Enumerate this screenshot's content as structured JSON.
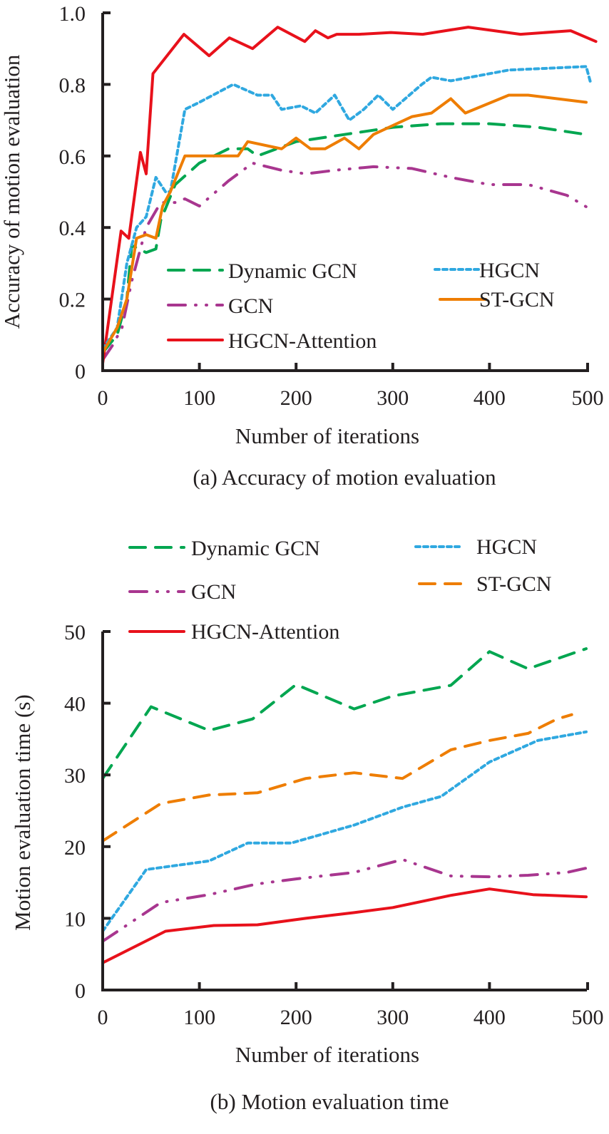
{
  "chart_data": [
    {
      "type": "line",
      "caption": "(a) Accuracy of motion evaluation",
      "xlabel": "Number of iterations",
      "ylabel": "Accuracy of motion evaluation",
      "xlim": [
        0,
        510
      ],
      "ylim": [
        0,
        1.0
      ],
      "xticks": [
        0,
        100,
        200,
        300,
        400,
        500
      ],
      "xtick_labels": [
        "0",
        "100",
        "200",
        "300",
        "400",
        "500"
      ],
      "yticks": [
        0,
        0.2,
        0.4,
        0.6,
        0.8,
        1.0
      ],
      "ytick_labels": [
        "0",
        "0.2",
        "0.4",
        "0.6",
        "0.8",
        "1.0"
      ],
      "grid": false,
      "legend_position": "lower-center",
      "series": [
        {
          "name": "Dynamic GCN",
          "color": "#00a650",
          "style": "dashed",
          "x": [
            0,
            15,
            25,
            30,
            45,
            55,
            60,
            75,
            100,
            130,
            150,
            160,
            200,
            250,
            300,
            350,
            400,
            450,
            500
          ],
          "y": [
            0.05,
            0.1,
            0.2,
            0.35,
            0.33,
            0.34,
            0.42,
            0.52,
            0.58,
            0.62,
            0.62,
            0.6,
            0.64,
            0.66,
            0.68,
            0.69,
            0.69,
            0.68,
            0.66
          ]
        },
        {
          "name": "GCN",
          "color": "#a8368f",
          "style": "dash-dot-dot",
          "x": [
            0,
            10,
            20,
            30,
            45,
            60,
            75,
            85,
            100,
            130,
            155,
            185,
            210,
            240,
            280,
            320,
            360,
            400,
            440,
            480,
            505
          ],
          "y": [
            0.03,
            0.07,
            0.12,
            0.25,
            0.4,
            0.47,
            0.47,
            0.48,
            0.46,
            0.53,
            0.58,
            0.56,
            0.55,
            0.56,
            0.57,
            0.565,
            0.54,
            0.52,
            0.52,
            0.49,
            0.45
          ]
        },
        {
          "name": "HGCN-Attention",
          "color": "#e8111b",
          "style": "solid",
          "x": [
            0,
            19,
            27,
            39,
            45,
            52,
            84,
            110,
            131,
            155,
            181,
            209,
            220,
            233,
            242,
            253,
            265,
            298,
            331,
            378,
            432,
            484,
            510
          ],
          "y": [
            0.02,
            0.39,
            0.37,
            0.61,
            0.55,
            0.83,
            0.94,
            0.88,
            0.93,
            0.9,
            0.96,
            0.92,
            0.95,
            0.93,
            0.94,
            0.94,
            0.94,
            0.945,
            0.94,
            0.96,
            0.94,
            0.95,
            0.92
          ]
        },
        {
          "name": "HGCN",
          "color": "#2fa8e0",
          "style": "dotted",
          "x": [
            0,
            15,
            25,
            35,
            45,
            55,
            65,
            70,
            85,
            100,
            135,
            160,
            175,
            185,
            205,
            220,
            240,
            255,
            270,
            285,
            300,
            330,
            340,
            360,
            380,
            420,
            460,
            500,
            505
          ],
          "y": [
            0.06,
            0.12,
            0.3,
            0.4,
            0.43,
            0.54,
            0.5,
            0.5,
            0.73,
            0.75,
            0.8,
            0.77,
            0.77,
            0.73,
            0.74,
            0.72,
            0.77,
            0.7,
            0.73,
            0.77,
            0.73,
            0.8,
            0.82,
            0.81,
            0.82,
            0.84,
            0.845,
            0.85,
            0.8
          ]
        },
        {
          "name": "ST-GCN",
          "color": "#ee7d00",
          "style": "solid",
          "x": [
            0,
            15,
            25,
            35,
            45,
            55,
            62,
            70,
            85,
            100,
            140,
            150,
            185,
            200,
            215,
            230,
            250,
            265,
            280,
            320,
            340,
            360,
            375,
            420,
            440,
            500
          ],
          "y": [
            0.05,
            0.12,
            0.2,
            0.37,
            0.38,
            0.37,
            0.46,
            0.5,
            0.6,
            0.6,
            0.6,
            0.64,
            0.62,
            0.65,
            0.62,
            0.62,
            0.65,
            0.62,
            0.66,
            0.71,
            0.72,
            0.76,
            0.72,
            0.77,
            0.77,
            0.75
          ]
        }
      ]
    },
    {
      "type": "line",
      "caption": "(b) Motion evaluation time",
      "xlabel": "Number of iterations",
      "ylabel": "Motion evaluation time (s)",
      "xlim": [
        0,
        510
      ],
      "ylim": [
        0,
        50
      ],
      "xticks": [
        0,
        100,
        200,
        300,
        400,
        500
      ],
      "xtick_labels": [
        "0",
        "100",
        "200",
        "300",
        "400",
        "500"
      ],
      "yticks": [
        0,
        10,
        20,
        30,
        40,
        50
      ],
      "ytick_labels": [
        "0",
        "10",
        "20",
        "30",
        "40",
        "50"
      ],
      "grid": false,
      "legend_position": "top",
      "series": [
        {
          "name": "Dynamic GCN",
          "color": "#00a650",
          "style": "dashed",
          "x": [
            0,
            50,
            110,
            155,
            200,
            260,
            300,
            360,
            400,
            440,
            500
          ],
          "y": [
            29.5,
            39.5,
            36.2,
            37.8,
            42.6,
            39.2,
            41.0,
            42.5,
            47.2,
            44.8,
            47.6
          ]
        },
        {
          "name": "GCN",
          "color": "#a8368f",
          "style": "dash-dot-dot",
          "x": [
            0,
            60,
            110,
            160,
            200,
            260,
            310,
            360,
            400,
            440,
            480,
            500
          ],
          "y": [
            6.8,
            12.2,
            13.3,
            14.8,
            15.5,
            16.4,
            18.2,
            15.9,
            15.8,
            16.0,
            16.4,
            17.0
          ]
        },
        {
          "name": "HGCN-Attention",
          "color": "#e8111b",
          "style": "solid",
          "x": [
            0,
            65,
            115,
            160,
            210,
            260,
            300,
            360,
            400,
            445,
            500
          ],
          "y": [
            3.8,
            8.2,
            9.0,
            9.1,
            10.0,
            10.8,
            11.5,
            13.2,
            14.1,
            13.3,
            13.0
          ]
        },
        {
          "name": "HGCN",
          "color": "#2fa8e0",
          "style": "dotted",
          "x": [
            0,
            45,
            110,
            150,
            195,
            260,
            310,
            350,
            400,
            450,
            500
          ],
          "y": [
            8.2,
            16.8,
            18.0,
            20.5,
            20.5,
            23.0,
            25.5,
            27.0,
            31.8,
            34.8,
            36.0
          ]
        },
        {
          "name": "ST-GCN",
          "color": "#ee7d00",
          "style": "dashed",
          "x": [
            0,
            60,
            110,
            160,
            210,
            260,
            310,
            360,
            400,
            440,
            470,
            485
          ],
          "y": [
            20.8,
            26.0,
            27.2,
            27.5,
            29.5,
            30.3,
            29.5,
            33.5,
            34.8,
            35.8,
            37.8,
            38.4
          ]
        }
      ]
    }
  ]
}
